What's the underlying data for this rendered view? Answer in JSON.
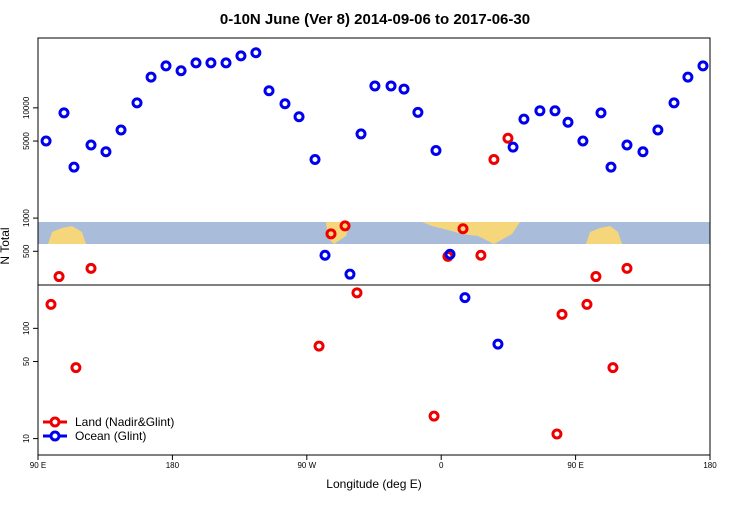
{
  "chart_data": {
    "type": "scatter",
    "title": "0-10N June (Ver 8)   2014-09-06 to 2017-06-30",
    "xlabel": "Longitude (deg E)",
    "ylabel": "N Total",
    "xlim": [
      90,
      540
    ],
    "xticks": [
      {
        "value": 90,
        "label": "90 E"
      },
      180,
      {
        "value": 270,
        "label": "90 W"
      },
      {
        "value": 360,
        "label": "0"
      },
      {
        "value": 450,
        "label": "90 E"
      },
      {
        "value": 540,
        "label": "180"
      }
    ],
    "ylim": [
      7.1,
      43000
    ],
    "log": true,
    "yticks": [
      10,
      50,
      100,
      500,
      1000,
      5000,
      10000
    ],
    "legend": "bottomleft",
    "series": [
      {
        "name": "Land (Nadir&Glint)",
        "color": "#ee0000",
        "x": [
          98.7,
          104.1,
          115.4,
          125.5,
          278.2,
          286.2,
          295.6,
          303.6,
          355.2,
          364.5,
          374.6,
          386.6,
          395.3,
          404.7,
          437.5,
          440.9,
          457.6,
          463.6,
          475.0,
          484.4
        ],
        "values": [
          165,
          295,
          44,
          350,
          69,
          720,
          850,
          210,
          16,
          450,
          800,
          460,
          3400,
          5300,
          11,
          134,
          165,
          295,
          44,
          350
        ]
      },
      {
        "name": "Ocean (Glint)",
        "color": "#0000ee",
        "x": [
          95.4,
          107.4,
          114.1,
          125.5,
          135.5,
          145.6,
          156.3,
          165.7,
          175.7,
          185.8,
          195.8,
          205.8,
          215.9,
          225.9,
          235.9,
          244.7,
          255.4,
          264.8,
          275.5,
          282.2,
          298.9,
          306.3,
          315.6,
          326.4,
          335.1,
          344.4,
          356.5,
          365.9,
          375.9,
          398.0,
          408.1,
          415.4,
          426.1,
          436.2,
          444.9,
          454.9,
          467.0,
          473.7,
          484.4,
          495.1,
          505.1,
          515.9,
          525.2,
          535.3
        ],
        "values": [
          5000,
          9000,
          2900,
          4600,
          4000,
          6300,
          11100,
          19000,
          24000,
          21700,
          25600,
          25600,
          25600,
          29600,
          31600,
          14300,
          10900,
          8300,
          3400,
          460,
          310,
          5800,
          15800,
          15800,
          14800,
          9100,
          4100,
          470,
          190,
          72,
          4400,
          7900,
          9400,
          9400,
          7400,
          5000,
          9000,
          2900,
          4600,
          4000,
          6300,
          11100,
          19000,
          24000
        ]
      }
    ]
  }
}
